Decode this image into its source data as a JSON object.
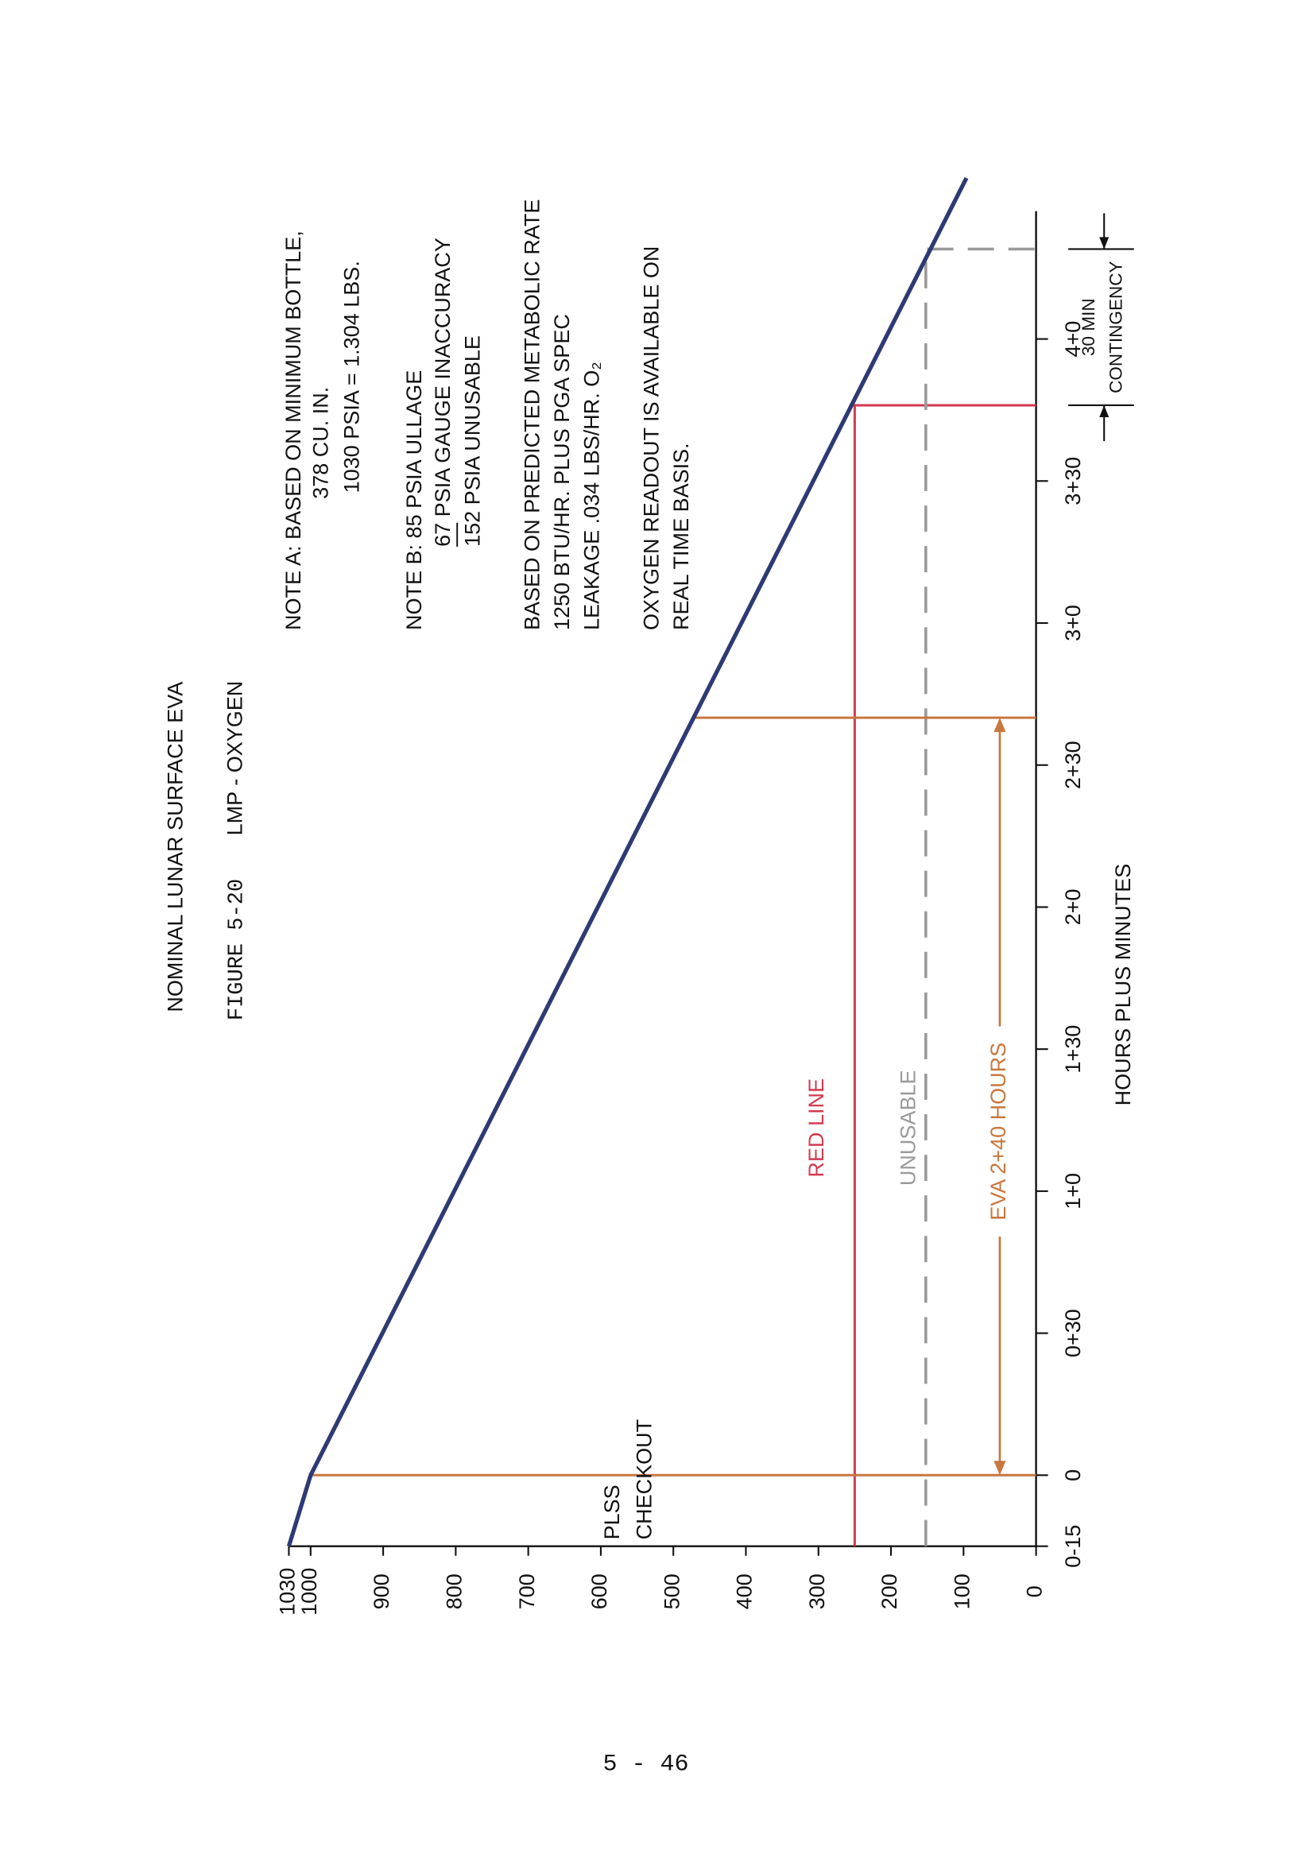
{
  "chart_data": {
    "type": "line",
    "title": "NOMINAL LUNAR SURFACE EVA",
    "figure": "FIGURE 5-20",
    "subtitle": "LMP - OXYGEN",
    "xlabel": "HOURS PLUS MINUTES",
    "x": [
      -15,
      0,
      274
    ],
    "values": [
      1030,
      1000,
      96
    ],
    "color": "#2e3a73",
    "xlim": [
      -15,
      267
    ],
    "ylim": [
      0,
      1030
    ],
    "xticks": [
      {
        "value": -15,
        "label": "0-15"
      },
      0,
      {
        "value": 30,
        "label": "0+30"
      },
      {
        "value": 60,
        "label": "1+0"
      },
      {
        "value": 90,
        "label": "1+30"
      },
      {
        "value": 120,
        "label": "2+0"
      },
      {
        "value": 150,
        "label": "2+30"
      },
      {
        "value": 180,
        "label": "3+0"
      },
      {
        "value": 210,
        "label": "3+30"
      },
      {
        "value": 240,
        "label": "4+0"
      }
    ],
    "yticks": [
      0,
      100,
      200,
      300,
      400,
      500,
      600,
      700,
      800,
      900,
      1000,
      1030
    ],
    "red_line": {
      "label": "RED LINE",
      "value": 250,
      "end": 226,
      "color": "#d33a4f"
    },
    "unusable": {
      "label": "UNUSABLE",
      "value": 152,
      "end": 259,
      "color": "#9a9a9a"
    },
    "eva": {
      "label": "EVA 2+40 HOURS",
      "start": 0,
      "end": 160,
      "level": 50,
      "color": "#c8773f"
    },
    "plss": [
      "PLSS",
      "CHECKOUT"
    ],
    "contingency": {
      "label": [
        "30 MIN",
        "CONTINGENCY"
      ],
      "start": 226,
      "end": 259
    },
    "notes": [
      [
        "NOTE A:   BASED ON MINIMUM BOTTLE,",
        "378 CU. IN.",
        "1030 PSIA = 1.304 LBS."
      ],
      [
        "NOTE B:  85  PSIA ULLAGE",
        "67  PSIA GAUGE INACCURACY",
        "152  PSIA UNUSABLE"
      ],
      [
        "BASED ON PREDICTED METABOLIC RATE",
        "1250 BTU/HR. PLUS PGA SPEC",
        "LEAKAGE .034 LBS/HR. O₂"
      ],
      [
        "OXYGEN READOUT IS AVAILABLE ON",
        "REAL TIME BASIS."
      ]
    ],
    "page_number": "5 - 46"
  }
}
